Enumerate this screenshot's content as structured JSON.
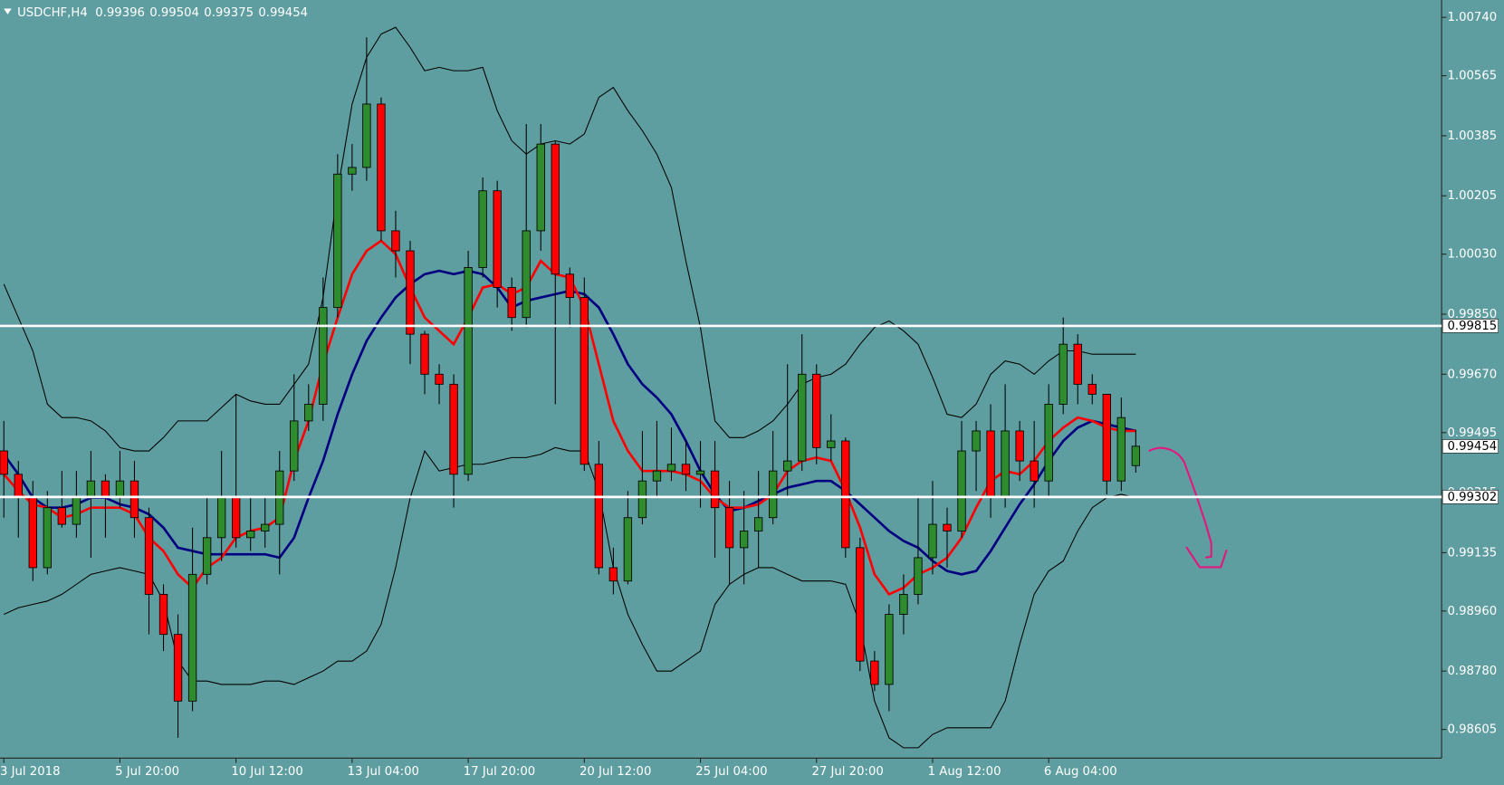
{
  "chart_data": {
    "type": "candlestick",
    "title": "USDCHF,H4",
    "categories": [
      "3 Jul 2018",
      null,
      null,
      null,
      null,
      null,
      null,
      null,
      "5 Jul 20:00",
      null,
      null,
      null,
      null,
      null,
      null,
      null,
      "10 Jul 12:00",
      null,
      null,
      null,
      null,
      null,
      null,
      null,
      "13 Jul 04:00",
      null,
      null,
      null,
      null,
      null,
      null,
      null,
      "17 Jul 20:00",
      null,
      null,
      null,
      null,
      null,
      null,
      null,
      "20 Jul 12:00",
      null,
      null,
      null,
      null,
      null,
      null,
      null,
      "25 Jul 04:00",
      null,
      null,
      null,
      null,
      null,
      null,
      null,
      "27 Jul 20:00",
      null,
      null,
      null,
      null,
      null,
      null,
      null,
      "1 Aug 12:00",
      null,
      null,
      null,
      null,
      null,
      null,
      null,
      "6 Aug 04:00",
      null,
      null,
      null,
      null,
      null,
      null
    ],
    "open": [
      0.9944,
      0.9937,
      0.993,
      0.9909,
      0.9927,
      0.9922,
      0.993,
      0.9935,
      0.993,
      0.9935,
      0.9924,
      0.9901,
      0.9889,
      0.9869,
      0.9907,
      0.9918,
      0.993,
      0.9918,
      0.992,
      0.9922,
      0.9938,
      0.9953,
      0.9958,
      0.9987,
      1.0027,
      1.0029,
      1.0048,
      1.001,
      1.0004,
      0.9979,
      0.9967,
      0.9964,
      0.9937,
      0.9999,
      1.0022,
      0.9993,
      0.9984,
      1.001,
      1.0036,
      0.9997,
      0.999,
      0.994,
      0.9909,
      0.9905,
      0.9924,
      0.9935,
      0.9938,
      0.994,
      0.9937,
      0.9938,
      0.9927,
      0.9915,
      0.992,
      0.9924,
      0.9938,
      0.9941,
      0.9967,
      0.9945,
      0.9947,
      0.9915,
      0.9881,
      0.9874,
      0.9895,
      0.9901,
      0.9912,
      0.9922,
      0.992,
      0.9944,
      0.995,
      0.993,
      0.995,
      0.9941,
      0.9935,
      0.9958,
      0.9976,
      0.9964,
      0.9961,
      0.9935,
      0.99396
    ],
    "high": [
      0.9953,
      0.9941,
      0.9935,
      0.9932,
      0.9938,
      0.9938,
      0.9944,
      0.9937,
      0.9944,
      0.9941,
      0.9927,
      0.9904,
      0.9895,
      0.9921,
      0.993,
      0.9944,
      0.9961,
      0.993,
      0.993,
      0.9944,
      0.9967,
      0.9964,
      0.9996,
      1.0033,
      1.0036,
      1.0068,
      1.005,
      1.0016,
      1.0007,
      0.998,
      0.997,
      0.9967,
      1.0004,
      1.0026,
      1.0025,
      0.9996,
      1.0042,
      1.0042,
      1.0037,
      0.9999,
      0.9996,
      0.9947,
      0.9915,
      0.9932,
      0.995,
      0.9953,
      0.9951,
      0.9947,
      0.9947,
      0.9947,
      0.9935,
      0.9932,
      0.9938,
      0.995,
      0.997,
      0.9979,
      0.997,
      0.9955,
      0.9948,
      0.9918,
      0.9884,
      0.9898,
      0.9907,
      0.993,
      0.9935,
      0.9927,
      0.9953,
      0.9953,
      0.9958,
      0.9964,
      0.9953,
      0.9953,
      0.9964,
      0.9984,
      0.9979,
      0.9967,
      0.9961,
      0.996,
      0.99504
    ],
    "low": [
      0.9924,
      0.9918,
      0.9905,
      0.9907,
      0.9921,
      0.9918,
      0.9912,
      0.9918,
      0.9927,
      0.9918,
      0.9889,
      0.9884,
      0.9858,
      0.9866,
      0.9904,
      0.9911,
      0.9915,
      0.9914,
      0.9915,
      0.9907,
      0.9935,
      0.995,
      0.9953,
      0.9984,
      1.0022,
      1.0025,
      1.0007,
      0.9996,
      0.997,
      0.9961,
      0.9958,
      0.9927,
      0.9935,
      0.9996,
      0.9987,
      0.998,
      0.9981,
      1.0004,
      0.9958,
      0.9981,
      0.9938,
      0.9907,
      0.9901,
      0.9904,
      0.9922,
      0.993,
      0.9935,
      0.9932,
      0.9927,
      0.9912,
      0.9904,
      0.9904,
      0.9909,
      0.9922,
      0.993,
      0.9938,
      0.994,
      0.9941,
      0.9912,
      0.9878,
      0.9872,
      0.9866,
      0.9889,
      0.9898,
      0.9907,
      0.9909,
      0.9918,
      0.9932,
      0.9924,
      0.9927,
      0.9935,
      0.9927,
      0.993,
      0.9955,
      0.9958,
      0.9958,
      0.9931,
      0.9932,
      0.99375
    ],
    "close": [
      0.9937,
      0.993,
      0.9909,
      0.9927,
      0.9922,
      0.993,
      0.9935,
      0.993,
      0.9935,
      0.9924,
      0.9901,
      0.9889,
      0.9869,
      0.9907,
      0.9918,
      0.993,
      0.9918,
      0.992,
      0.9922,
      0.9938,
      0.9953,
      0.9958,
      0.9987,
      1.0027,
      1.0029,
      1.0048,
      1.001,
      1.0004,
      0.9979,
      0.9967,
      0.9964,
      0.9937,
      0.9999,
      1.0022,
      0.9993,
      0.9984,
      1.001,
      1.0036,
      0.9997,
      0.999,
      0.994,
      0.9909,
      0.9905,
      0.9924,
      0.9935,
      0.9938,
      0.994,
      0.9937,
      0.9938,
      0.9927,
      0.9915,
      0.992,
      0.9924,
      0.9938,
      0.9941,
      0.9967,
      0.9945,
      0.9947,
      0.9915,
      0.9881,
      0.9874,
      0.9895,
      0.9901,
      0.9912,
      0.9922,
      0.992,
      0.9944,
      0.995,
      0.993,
      0.995,
      0.9941,
      0.9935,
      0.9958,
      0.9976,
      0.9964,
      0.9961,
      0.9935,
      0.9954,
      0.99454
    ],
    "color_up": "#2e8b2e",
    "color_down": "#ff0000",
    "lines": [
      {
        "color": "#000000",
        "values": [
          0.9994,
          0.9984,
          0.9974,
          0.9958,
          0.9954,
          0.9954,
          0.9953,
          0.995,
          0.9945,
          0.9944,
          0.9944,
          0.9948,
          0.9953,
          0.9953,
          0.9953,
          0.9957,
          0.9961,
          0.9959,
          0.9958,
          0.9958,
          0.9964,
          0.997,
          0.999,
          1.0022,
          1.0048,
          1.0062,
          1.0069,
          1.0071,
          1.0065,
          1.0058,
          1.0059,
          1.0058,
          1.0058,
          1.0059,
          1.0046,
          1.0037,
          1.0033,
          1.0036,
          1.0037,
          1.0036,
          1.0039,
          1.005,
          1.0053,
          1.0046,
          1.004,
          1.0033,
          1.0023,
          1.0001,
          0.9981,
          0.9953,
          0.9948,
          0.9948,
          0.995,
          0.9953,
          0.9958,
          0.9964,
          0.9966,
          0.9967,
          0.997,
          0.9976,
          0.9981,
          0.9983,
          0.998,
          0.9976,
          0.9966,
          0.9955,
          0.9954,
          0.9958,
          0.9967,
          0.9971,
          0.997,
          0.9967,
          0.9971,
          0.9974,
          0.9974,
          0.9973,
          0.9973,
          0.9973,
          0.9973
        ]
      },
      {
        "color": "#000000",
        "values": [
          0.9895,
          0.9897,
          0.9898,
          0.9899,
          0.9901,
          0.9904,
          0.9907,
          0.9908,
          0.9909,
          0.9908,
          0.9907,
          0.9899,
          0.9881,
          0.9875,
          0.9875,
          0.9874,
          0.9874,
          0.9874,
          0.9875,
          0.9875,
          0.9874,
          0.9876,
          0.9878,
          0.9881,
          0.9881,
          0.9884,
          0.9892,
          0.9909,
          0.993,
          0.9944,
          0.9938,
          0.9939,
          0.994,
          0.994,
          0.9941,
          0.9942,
          0.9942,
          0.9943,
          0.9945,
          0.9944,
          0.9944,
          0.9932,
          0.9909,
          0.9895,
          0.9886,
          0.9878,
          0.9878,
          0.9881,
          0.9884,
          0.9898,
          0.9904,
          0.9907,
          0.9909,
          0.9909,
          0.9907,
          0.9905,
          0.9905,
          0.9905,
          0.9904,
          0.9892,
          0.9869,
          0.9858,
          0.9855,
          0.9855,
          0.9859,
          0.9861,
          0.9861,
          0.9861,
          0.9861,
          0.9869,
          0.9886,
          0.9901,
          0.9908,
          0.9911,
          0.992,
          0.9927,
          0.993,
          0.9931,
          0.993
        ]
      },
      {
        "color": "#000080",
        "values": [
          0.9943,
          0.9937,
          0.993,
          0.9927,
          0.9927,
          0.9928,
          0.993,
          0.993,
          0.9928,
          0.9927,
          0.9925,
          0.9921,
          0.9915,
          0.9914,
          0.9913,
          0.9913,
          0.9913,
          0.9913,
          0.9913,
          0.9912,
          0.9918,
          0.993,
          0.9941,
          0.9955,
          0.9967,
          0.9977,
          0.9984,
          0.999,
          0.9994,
          0.9997,
          0.9998,
          0.9997,
          0.9998,
          0.9997,
          0.9993,
          0.9987,
          0.9989,
          0.999,
          0.9991,
          0.9992,
          0.9991,
          0.9987,
          0.9979,
          0.997,
          0.9964,
          0.996,
          0.9955,
          0.9947,
          0.9938,
          0.9931,
          0.9926,
          0.9927,
          0.9929,
          0.9931,
          0.9933,
          0.9934,
          0.9935,
          0.9935,
          0.9932,
          0.9928,
          0.9924,
          0.992,
          0.9917,
          0.9915,
          0.9911,
          0.9908,
          0.9907,
          0.9908,
          0.9914,
          0.9921,
          0.9928,
          0.9934,
          0.9941,
          0.9947,
          0.9951,
          0.9953,
          0.9952,
          0.9951,
          0.995
        ]
      },
      {
        "color": "#ff0000",
        "values": [
          0.9937,
          0.9932,
          0.9928,
          0.9927,
          0.9924,
          0.9925,
          0.9927,
          0.9927,
          0.9927,
          0.9925,
          0.9918,
          0.9914,
          0.9907,
          0.9903,
          0.9909,
          0.9912,
          0.9918,
          0.992,
          0.9921,
          0.9924,
          0.9941,
          0.9953,
          0.997,
          0.9984,
          0.9997,
          1.0004,
          1.0007,
          1.0003,
          0.9993,
          0.9984,
          0.998,
          0.9976,
          0.9984,
          0.9993,
          0.9994,
          0.9991,
          0.9993,
          1.0001,
          0.9997,
          0.9996,
          0.9987,
          0.997,
          0.9953,
          0.9944,
          0.9938,
          0.9938,
          0.9938,
          0.9937,
          0.9935,
          0.993,
          0.9927,
          0.9927,
          0.9928,
          0.9931,
          0.9938,
          0.9941,
          0.9942,
          0.9941,
          0.9932,
          0.9921,
          0.9907,
          0.9901,
          0.9903,
          0.9907,
          0.9909,
          0.9912,
          0.9918,
          0.9927,
          0.9935,
          0.9938,
          0.9937,
          0.9941,
          0.9947,
          0.9951,
          0.9954,
          0.9953,
          0.9951,
          0.995,
          0.995
        ]
      }
    ],
    "hlines": [
      {
        "value": 0.99815,
        "color": "#ffffff"
      },
      {
        "value": 0.99302,
        "color": "#ffffff"
      }
    ],
    "ylim": [
      0.98519,
      1.00792
    ],
    "yticks": [
      {
        "value": 1.0074,
        "label": "1.00740"
      },
      1.00565,
      1.00385,
      1.00205,
      {
        "value": 1.0003,
        "label": "1.00030"
      },
      {
        "value": 0.9985,
        "label": "0.99850"
      },
      {
        "value": 0.9967,
        "label": "0.99670"
      },
      0.99495,
      0.99315,
      0.99135,
      {
        "value": 0.9896,
        "label": "0.98960"
      },
      {
        "value": 0.9878,
        "label": "0.98780"
      },
      0.98605
    ],
    "grid": false
  }
}
